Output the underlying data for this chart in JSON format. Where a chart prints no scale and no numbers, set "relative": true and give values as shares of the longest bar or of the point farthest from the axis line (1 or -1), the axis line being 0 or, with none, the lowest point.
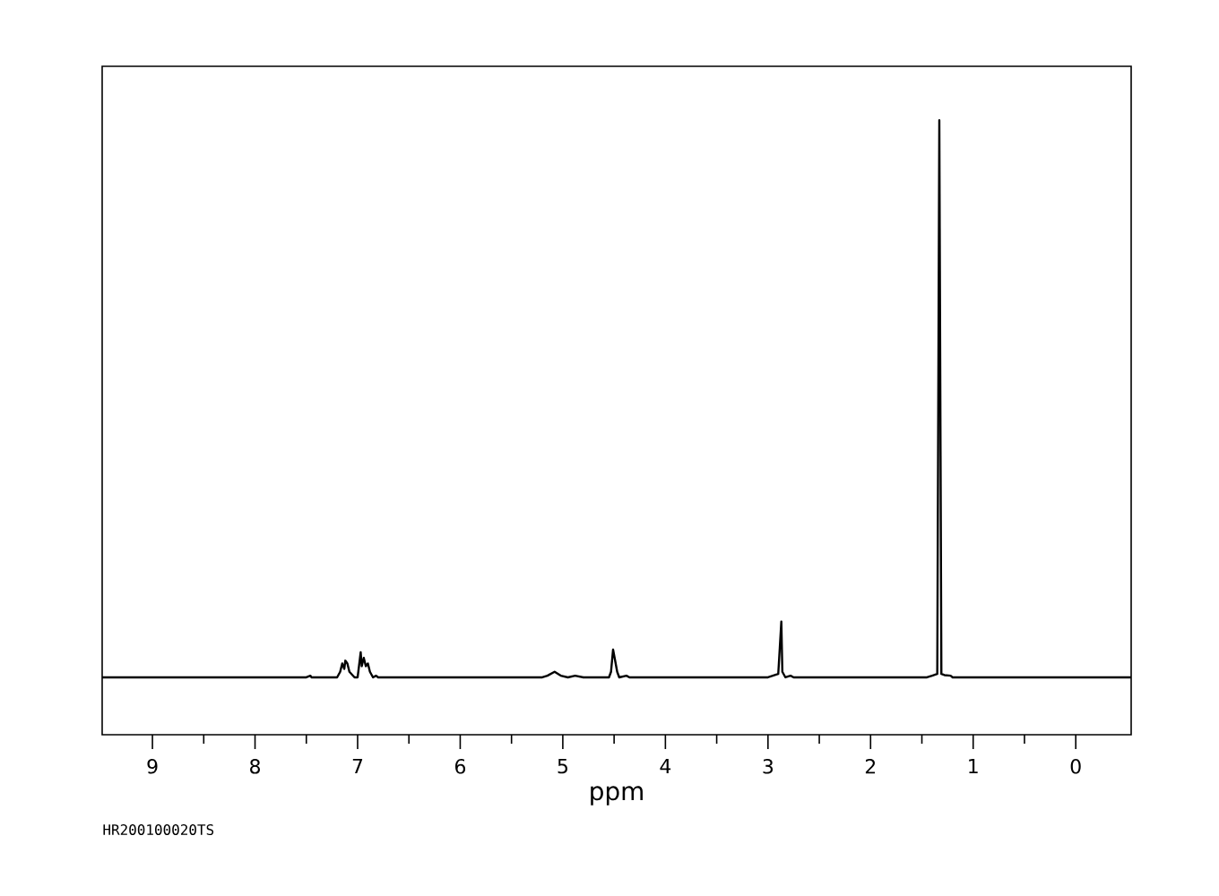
{
  "chart_data": {
    "type": "line",
    "relative": true,
    "xlabel": "ppm",
    "annotations": [
      "HR200100020TS"
    ],
    "xlim": [
      9.49,
      -0.54
    ],
    "xticks": [
      9,
      8,
      7,
      6,
      5,
      4,
      3,
      2,
      1,
      0
    ],
    "marker": "none",
    "line_style": "solid",
    "series": [
      {
        "color": "#000000",
        "x": [
          9.49,
          7.5,
          7.46,
          7.45,
          7.2,
          7.17,
          7.15,
          7.13,
          7.12,
          7.1,
          7.08,
          7.03,
          7.0,
          6.97,
          6.96,
          6.94,
          6.92,
          6.9,
          6.88,
          6.85,
          6.82,
          6.8,
          5.2,
          5.15,
          5.08,
          5.02,
          4.95,
          4.88,
          4.8,
          4.55,
          4.53,
          4.51,
          4.49,
          4.47,
          4.45,
          4.38,
          4.35,
          3.0,
          2.95,
          2.9,
          2.87,
          2.86,
          2.83,
          2.78,
          2.75,
          1.45,
          1.4,
          1.35,
          1.33,
          1.31,
          1.28,
          1.22,
          1.2,
          -0.54
        ],
        "values": [
          0,
          0,
          0.003,
          0,
          0,
          0.01,
          0.025,
          0.015,
          0.03,
          0.025,
          0.01,
          0,
          0,
          0.045,
          0.02,
          0.035,
          0.02,
          0.025,
          0.01,
          0,
          0.003,
          0,
          0,
          0.003,
          0.01,
          0.003,
          0,
          0.003,
          0,
          0,
          0.01,
          0.05,
          0.03,
          0.01,
          0,
          0.003,
          0,
          0,
          0.003,
          0.006,
          0.1,
          0.01,
          0,
          0.003,
          0,
          0,
          0.003,
          0.006,
          1,
          0.006,
          0.004,
          0.003,
          0,
          0
        ]
      }
    ]
  }
}
